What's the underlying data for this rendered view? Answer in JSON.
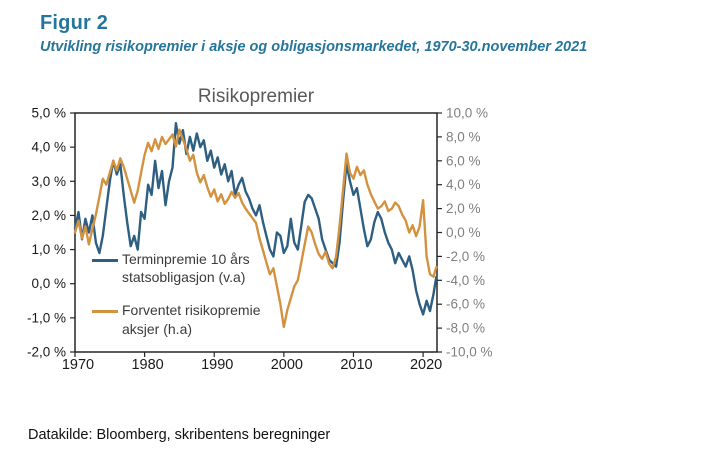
{
  "header": {
    "figure_label": "Figur 2",
    "subtitle": "Utvikling risikopremier i aksje og obligasjonsmarkedet, 1970-30.november 2021"
  },
  "footer": {
    "source": "Datakilde: Bloomberg, skribentens beregninger"
  },
  "colors": {
    "header_teal": "#26759b",
    "title_gray": "#595959",
    "right_axis_gray": "#7f7f7f",
    "axis_black": "#1a1a1a",
    "bond_blue": "#2e5f82",
    "equity_orange": "#d3923f"
  },
  "chart_data": {
    "type": "line",
    "title": "Risikopremier",
    "grid": "off",
    "legend_position": "inside-left",
    "left_axis": {
      "labels": [
        "5,0 %",
        "4,0 %",
        "3,0 %",
        "2,0 %",
        "1,0 %",
        "0,0 %",
        "-1,0 %",
        "-2,0 %"
      ],
      "values": [
        5,
        4,
        3,
        2,
        1,
        0,
        -1,
        -2
      ],
      "min": -2,
      "max": 5
    },
    "right_axis": {
      "labels": [
        "10,0 %",
        "8,0 %",
        "6,0 %",
        "4,0 %",
        "2,0 %",
        "0,0 %",
        "-2,0 %",
        "-4,0 %",
        "-6,0 %",
        "-8,0 %",
        "-10,0 %"
      ],
      "values": [
        10,
        8,
        6,
        4,
        2,
        0,
        -2,
        -4,
        -6,
        -8,
        -10
      ],
      "min": -10,
      "max": 10
    },
    "x_axis": {
      "labels": [
        "1970",
        "1980",
        "1990",
        "2000",
        "2010",
        "2020"
      ],
      "values": [
        1970,
        1980,
        1990,
        2000,
        2010,
        2020
      ],
      "min": 1970,
      "max": 2022
    },
    "x": [
      1970,
      1970.5,
      1971,
      1971.5,
      1972,
      1972.5,
      1973,
      1973.5,
      1974,
      1974.5,
      1975,
      1975.5,
      1976,
      1976.5,
      1977,
      1977.5,
      1978,
      1978.5,
      1979,
      1979.5,
      1980,
      1980.5,
      1981,
      1981.5,
      1982,
      1982.5,
      1983,
      1983.5,
      1984,
      1984.5,
      1985,
      1985.5,
      1986,
      1986.5,
      1987,
      1987.5,
      1988,
      1988.5,
      1989,
      1989.5,
      1990,
      1990.5,
      1991,
      1991.5,
      1992,
      1992.5,
      1993,
      1993.5,
      1994,
      1994.5,
      1995,
      1995.5,
      1996,
      1996.5,
      1997,
      1997.5,
      1998,
      1998.5,
      1999,
      1999.5,
      2000,
      2000.5,
      2001,
      2001.5,
      2002,
      2002.5,
      2003,
      2003.5,
      2004,
      2004.5,
      2005,
      2005.5,
      2006,
      2006.5,
      2007,
      2007.5,
      2008,
      2008.5,
      2009,
      2009.5,
      2010,
      2010.5,
      2011,
      2011.5,
      2012,
      2012.5,
      2013,
      2013.5,
      2014,
      2014.5,
      2015,
      2015.5,
      2016,
      2016.5,
      2017,
      2017.5,
      2018,
      2018.5,
      2019,
      2019.5,
      2020,
      2020.5,
      2021,
      2021.5,
      2021.9
    ],
    "series": [
      {
        "name": "Terminpremie 10 års statsobligasjon (v.a)",
        "axis": "left",
        "color": "#2e5f82",
        "values": [
          1.6,
          2.1,
          1.3,
          1.9,
          1.5,
          2.0,
          1.2,
          0.9,
          1.4,
          2.2,
          3.0,
          3.6,
          3.2,
          3.5,
          2.6,
          1.8,
          1.1,
          1.4,
          1.0,
          2.1,
          1.9,
          2.9,
          2.6,
          3.6,
          2.8,
          3.3,
          2.3,
          3.0,
          3.4,
          4.7,
          4.1,
          4.5,
          3.8,
          4.3,
          3.9,
          4.4,
          4.0,
          4.2,
          3.6,
          3.9,
          3.4,
          3.7,
          3.2,
          3.5,
          3.0,
          3.3,
          2.6,
          2.9,
          3.1,
          2.7,
          2.5,
          2.2,
          2.0,
          2.3,
          1.8,
          1.4,
          1.0,
          0.8,
          1.5,
          1.4,
          0.9,
          1.1,
          1.9,
          1.2,
          1.0,
          1.7,
          2.4,
          2.6,
          2.5,
          2.2,
          1.9,
          1.3,
          1.0,
          0.7,
          0.6,
          0.5,
          1.2,
          2.4,
          3.5,
          3.0,
          2.6,
          2.8,
          2.2,
          1.6,
          1.1,
          1.3,
          1.8,
          2.1,
          1.9,
          1.5,
          1.2,
          1.0,
          0.6,
          0.9,
          0.7,
          0.5,
          0.8,
          0.4,
          -0.2,
          -0.6,
          -0.9,
          -0.5,
          -0.8,
          -0.3,
          0.2
        ]
      },
      {
        "name": "Forventet risikopremie aksjer (h.a)",
        "axis": "right",
        "color": "#d3923f",
        "values": [
          0.0,
          1.0,
          -0.5,
          0.5,
          -1.0,
          0.3,
          1.5,
          3.0,
          4.5,
          4.0,
          5.0,
          6.0,
          5.2,
          6.2,
          5.5,
          4.5,
          3.5,
          2.5,
          3.5,
          5.0,
          6.5,
          7.5,
          6.8,
          7.8,
          7.0,
          8.0,
          7.4,
          7.8,
          8.2,
          7.2,
          8.6,
          7.8,
          7.0,
          6.0,
          6.5,
          5.0,
          4.2,
          4.8,
          3.8,
          3.0,
          3.6,
          2.6,
          3.2,
          2.4,
          2.8,
          3.4,
          2.9,
          3.3,
          2.5,
          2.0,
          1.6,
          1.2,
          0.8,
          -0.5,
          -1.5,
          -2.5,
          -3.5,
          -3.0,
          -4.5,
          -6.0,
          -7.9,
          -6.5,
          -5.5,
          -4.5,
          -4.0,
          -2.5,
          -1.0,
          0.5,
          0.0,
          -1.0,
          -1.8,
          -2.2,
          -1.6,
          -2.6,
          -3.0,
          -2.0,
          0.5,
          3.5,
          6.6,
          5.0,
          4.5,
          5.5,
          4.8,
          5.2,
          4.0,
          3.2,
          2.6,
          2.0,
          2.2,
          2.6,
          1.8,
          2.0,
          2.5,
          2.2,
          1.5,
          1.0,
          0.0,
          0.6,
          -0.3,
          0.5,
          2.7,
          -2.0,
          -3.5,
          -3.7,
          -2.9
        ]
      }
    ]
  }
}
